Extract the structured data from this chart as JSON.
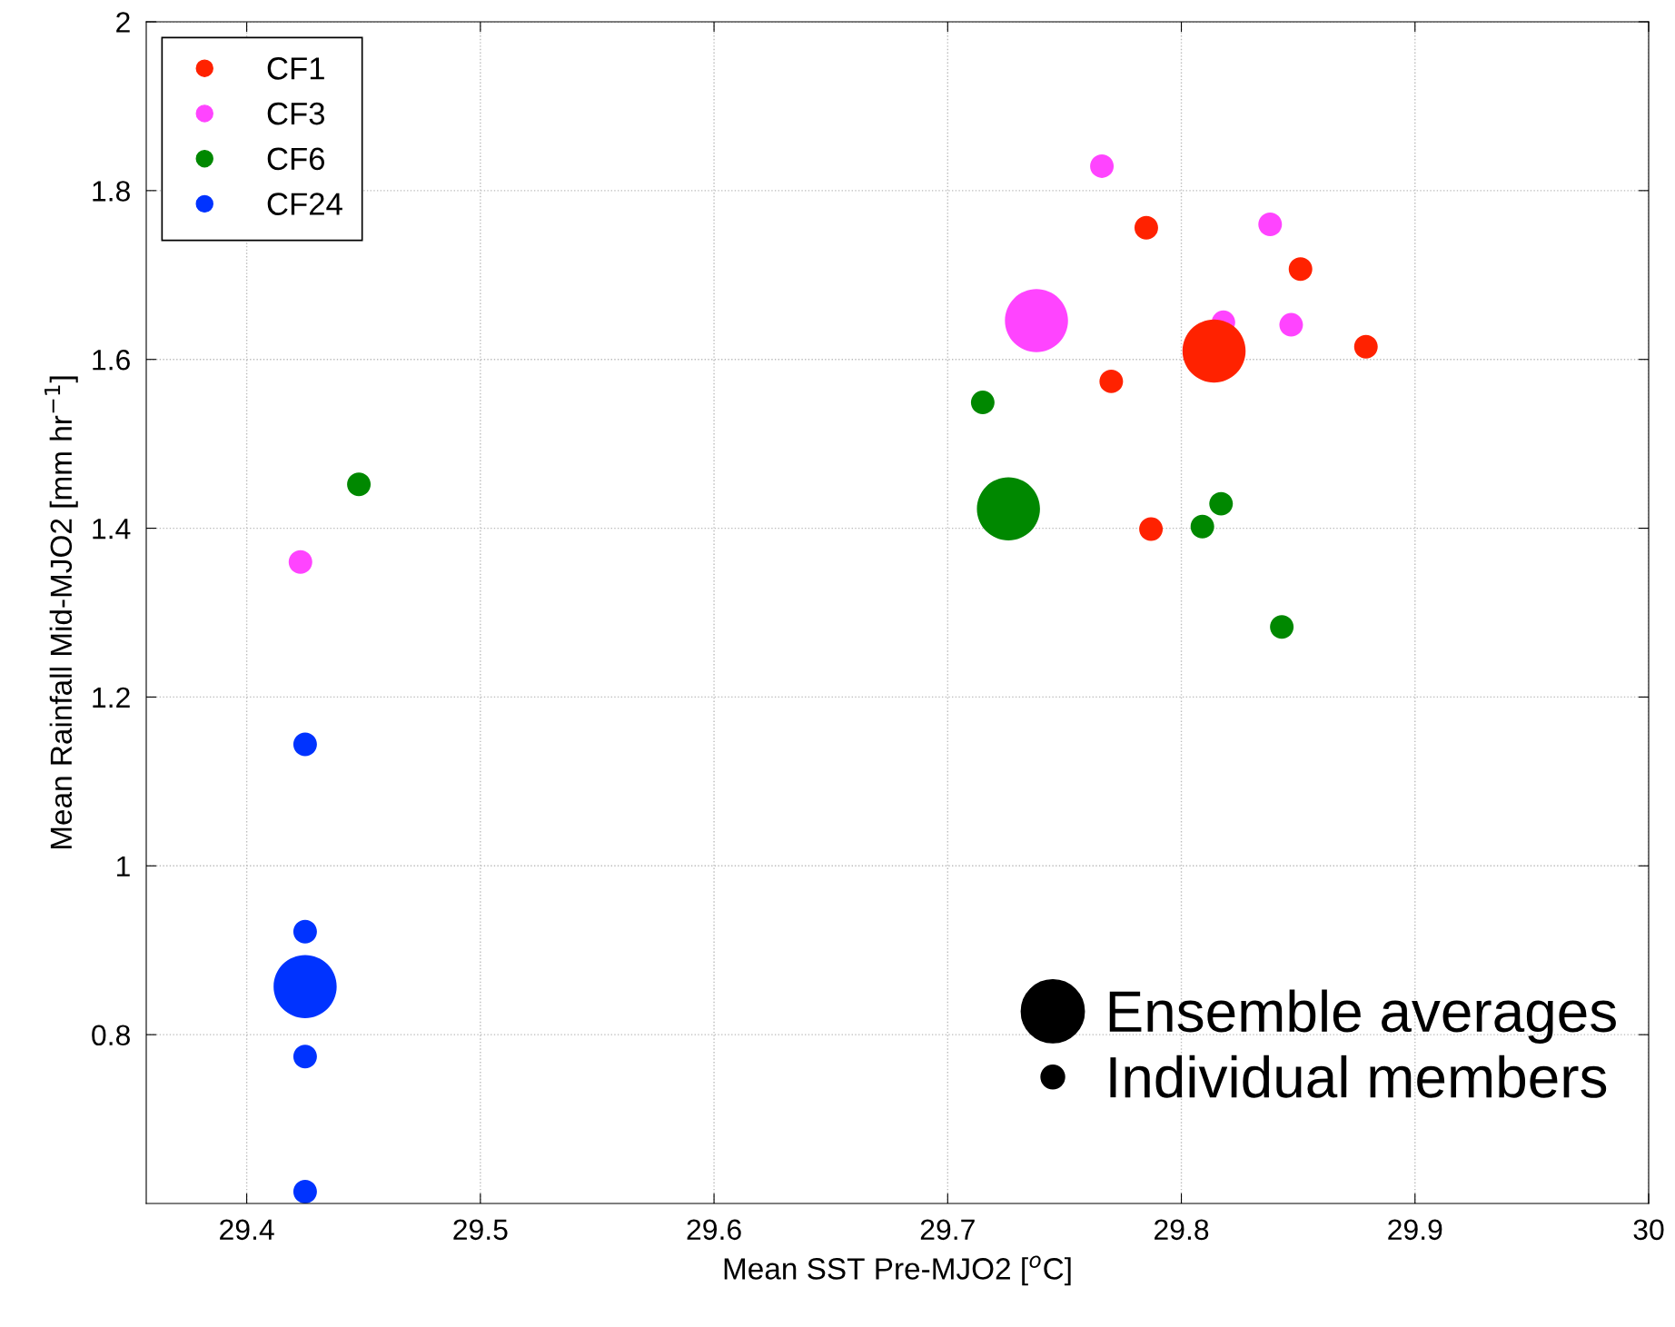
{
  "chart_data": {
    "type": "bubble",
    "xlabel": "Mean SST Pre-MJO2 [$^{o}$C]",
    "ylabel": "Mean Rainfall Mid-MJO2 [mm hr$^{−1}$]",
    "series": [
      {
        "name": "CF1",
        "color": "#ff2200",
        "x": [
          29.785,
          29.851,
          29.879,
          29.77,
          29.787,
          29.814
        ],
        "values": [
          1.756,
          1.707,
          1.615,
          1.574,
          1.399,
          1.61
        ],
        "sizes": [
          0.14,
          0.14,
          0.14,
          0.14,
          0.14,
          1
        ]
      },
      {
        "name": "CF3",
        "color": "#ff44ff",
        "x": [
          29.766,
          29.838,
          29.847,
          29.423,
          29.818,
          29.738
        ],
        "values": [
          1.829,
          1.76,
          1.641,
          1.36,
          1.644,
          1.646
        ],
        "sizes": [
          0.14,
          0.14,
          0.14,
          0.14,
          0.14,
          1
        ]
      },
      {
        "name": "CF6",
        "color": "#008800",
        "x": [
          29.715,
          29.448,
          29.817,
          29.809,
          29.843,
          29.726
        ],
        "values": [
          1.549,
          1.452,
          1.429,
          1.402,
          1.283,
          1.423
        ],
        "sizes": [
          0.14,
          0.14,
          0.14,
          0.14,
          0.14,
          1
        ]
      },
      {
        "name": "CF24",
        "color": "#0033ff",
        "x": [
          29.425,
          29.425,
          29.425,
          29.425,
          29.425
        ],
        "values": [
          1.144,
          0.922,
          0.774,
          0.614,
          0.857
        ],
        "sizes": [
          0.14,
          0.14,
          0.14,
          0.14,
          1
        ]
      }
    ],
    "xlim": [
      29.357,
      30
    ],
    "xticks": [
      29.4,
      29.5,
      29.6,
      29.7,
      29.8,
      29.9,
      30
    ],
    "ylim": [
      0.6,
      2
    ],
    "yticks": [
      0.8,
      1,
      1.2,
      1.4,
      1.6,
      1.8,
      2
    ],
    "grid": true,
    "legend": "top left",
    "marker": "circle",
    "size_legend": [
      {
        "value": 1,
        "label": "Ensemble averages"
      },
      {
        "value": 0.14,
        "label": "Individual members"
      }
    ]
  }
}
